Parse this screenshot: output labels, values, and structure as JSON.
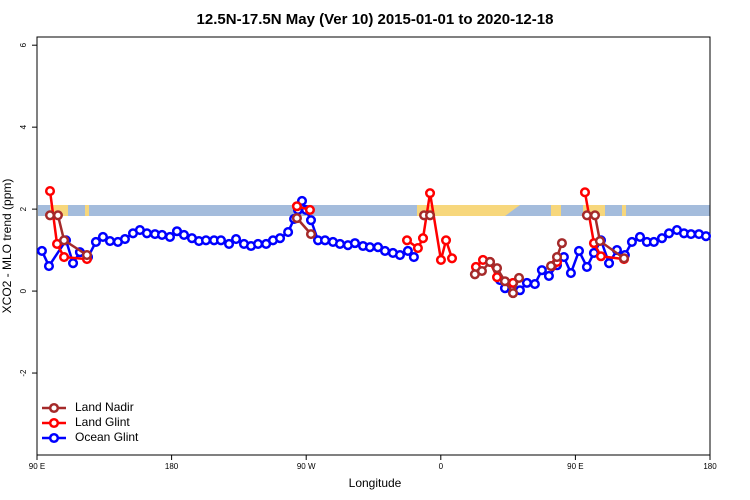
{
  "chart_data": {
    "type": "line",
    "title": "12.5N-17.5N May (Ver 10)   2015-01-01 to 2020-12-18",
    "xlabel": "Longitude",
    "ylabel": "XCO2 - MLO trend (ppm)",
    "xlim": [
      90,
      540
    ],
    "xticks": [
      {
        "value": 90,
        "label": "90 E"
      },
      180,
      {
        "value": 270,
        "label": "90 W"
      },
      {
        "value": 360,
        "label": "0"
      },
      {
        "value": 450,
        "label": "90 E"
      },
      {
        "value": 540,
        "label": "180"
      }
    ],
    "ylim": [
      -4,
      6.2
    ],
    "yticks": [
      -2,
      0,
      2,
      4,
      6
    ],
    "legend": "bottom-left",
    "series": [
      {
        "name": "Land Nadir",
        "color": "#a52a2a",
        "x": [
          98.7,
          104.0,
          108.1,
          123.4,
          null,
          263.8,
          273.2,
          null,
          348.8,
          352.8,
          null,
          382.8,
          387.5,
          392.9,
          397.6,
          402.9,
          408.3,
          412.3,
          null,
          433.7,
          437.7,
          441.0,
          null,
          457.7,
          463.1,
          466.4,
          482.5
        ],
        "values": [
          1.85,
          1.85,
          1.24,
          0.88,
          null,
          1.78,
          1.39,
          null,
          1.85,
          1.85,
          null,
          0.41,
          0.49,
          0.71,
          0.56,
          0.24,
          -0.05,
          0.32,
          null,
          0.61,
          0.83,
          1.17,
          null,
          1.85,
          1.85,
          1.22,
          0.8
        ]
      },
      {
        "name": "Land Glint",
        "color": "#ff0000",
        "x": [
          98.7,
          103.4,
          108.1,
          123.4,
          null,
          263.8,
          272.5,
          null,
          337.4,
          344.7,
          348.1,
          352.8,
          360.1,
          363.5,
          367.5,
          null,
          383.5,
          388.2,
          392.9,
          397.6,
          408.3,
          null,
          434.3,
          437.7,
          null,
          456.4,
          462.4,
          467.1,
          482.5
        ],
        "values": [
          2.44,
          1.15,
          0.83,
          0.78,
          null,
          2.07,
          1.98,
          null,
          1.24,
          1.05,
          1.29,
          2.39,
          0.76,
          1.24,
          0.8,
          null,
          0.59,
          0.76,
          0.71,
          0.34,
          0.2,
          null,
          0.61,
          0.71,
          null,
          2.41,
          1.17,
          0.85,
          0.78
        ]
      },
      {
        "name": "Ocean Glint",
        "color": "#0000ff",
        "x": [
          93.3,
          98.0,
          109.4,
          114.1,
          118.7,
          124.1,
          129.4,
          134.1,
          138.8,
          144.1,
          148.8,
          154.2,
          158.8,
          163.5,
          168.9,
          173.6,
          178.9,
          183.6,
          188.3,
          193.6,
          198.3,
          203.0,
          208.4,
          213.0,
          218.4,
          223.1,
          228.4,
          233.1,
          237.8,
          243.2,
          247.8,
          252.5,
          257.9,
          261.9,
          264.5,
          267.2,
          269.9,
          273.2,
          277.9,
          282.6,
          287.9,
          292.6,
          297.9,
          302.6,
          308.0,
          312.6,
          318.0,
          322.7,
          328.0,
          332.7,
          338.0,
          342.0,
          null,
          399.6,
          402.9,
          407.6,
          412.9,
          417.6,
          422.9,
          427.6,
          432.3,
          437.7,
          442.3,
          447.0,
          452.4,
          457.7,
          462.4,
          467.1,
          472.5,
          477.8,
          483.1,
          487.8,
          493.2,
          497.8,
          502.5,
          507.9,
          512.6,
          517.9,
          522.6,
          527.3,
          532.6,
          537.3
        ],
        "values": [
          0.98,
          0.61,
          1.24,
          0.68,
          0.95,
          0.83,
          1.2,
          1.32,
          1.22,
          1.2,
          1.27,
          1.41,
          1.49,
          1.41,
          1.39,
          1.37,
          1.32,
          1.46,
          1.37,
          1.29,
          1.22,
          1.24,
          1.24,
          1.24,
          1.15,
          1.27,
          1.15,
          1.1,
          1.15,
          1.15,
          1.24,
          1.29,
          1.44,
          1.76,
          1.98,
          2.2,
          1.98,
          1.73,
          1.24,
          1.24,
          1.2,
          1.15,
          1.12,
          1.17,
          1.1,
          1.07,
          1.07,
          0.98,
          0.93,
          0.88,
          0.98,
          0.83,
          null,
          0.27,
          0.07,
          0.02,
          0.02,
          0.2,
          0.17,
          0.51,
          0.37,
          0.63,
          0.83,
          0.44,
          0.98,
          0.59,
          0.93,
          1.24,
          0.68,
          1.0,
          0.88,
          1.2,
          1.32,
          1.2,
          1.2,
          1.29,
          1.41,
          1.49,
          1.41,
          1.39,
          1.39,
          1.34
        ]
      }
    ]
  }
}
